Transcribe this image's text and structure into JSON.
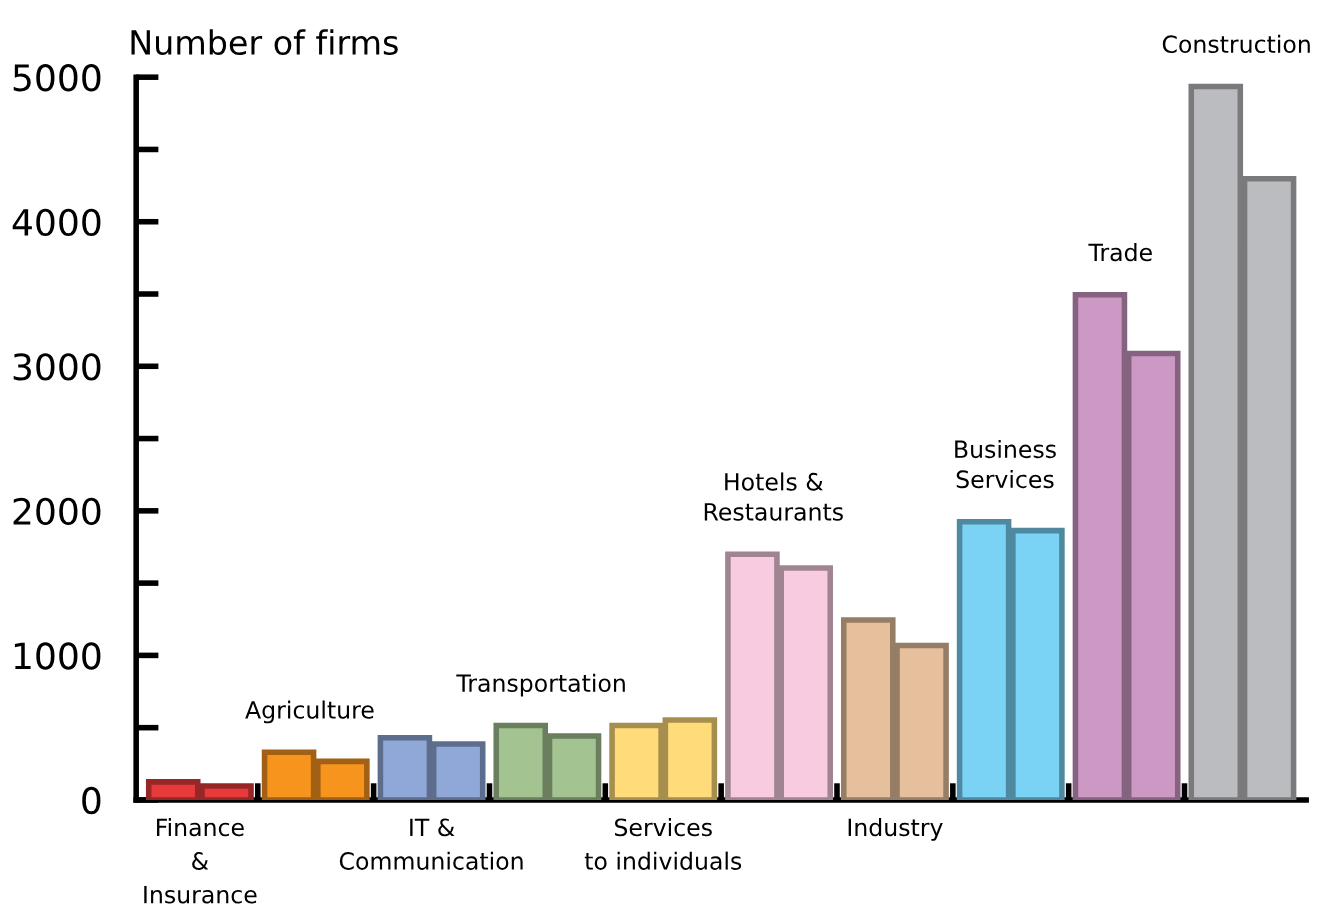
{
  "chart_data": {
    "type": "bar",
    "ylabel": "Number of firms",
    "categories": [
      "Finance\n&\nInsurance",
      "Agriculture",
      "IT &\nCommunication",
      "Transportation",
      "Services\nto individuals",
      "Hotels &\nRestaurants",
      "Industry",
      "Business\nServices",
      "Trade",
      "Construction"
    ],
    "series": [
      {
        "colors": [
          "#e83a3a",
          "#f7941d",
          "#8fa8d8",
          "#a3c490",
          "#ffdb7a",
          "#f8cbe0",
          "#e6c09c",
          "#7ad3f5",
          "#cc99c5",
          "#bbbcc0"
        ],
        "values": [
          125,
          330,
          430,
          515,
          515,
          1700,
          1245,
          1925,
          3495,
          4935
        ]
      },
      {
        "colors": [
          "#e83a3a",
          "#f7941d",
          "#8fa8d8",
          "#a3c490",
          "#ffdb7a",
          "#f8cbe0",
          "#e6c09c",
          "#7ad3f5",
          "#cc99c5",
          "#bbbcc0"
        ],
        "values": [
          97,
          267,
          387,
          443,
          553,
          1604,
          1069,
          1863,
          3089,
          4297
        ]
      }
    ],
    "ylim": [
      0,
      5000
    ],
    "yticks": [
      0,
      {
        "value": 500,
        "label": null
      },
      1000,
      {
        "value": 1500,
        "label": null
      },
      2000,
      {
        "value": 2500,
        "label": null
      },
      3000,
      {
        "value": 3500,
        "label": null
      },
      4000,
      {
        "value": 4500,
        "label": null
      },
      5000
    ],
    "grid": false,
    "legend": false
  }
}
